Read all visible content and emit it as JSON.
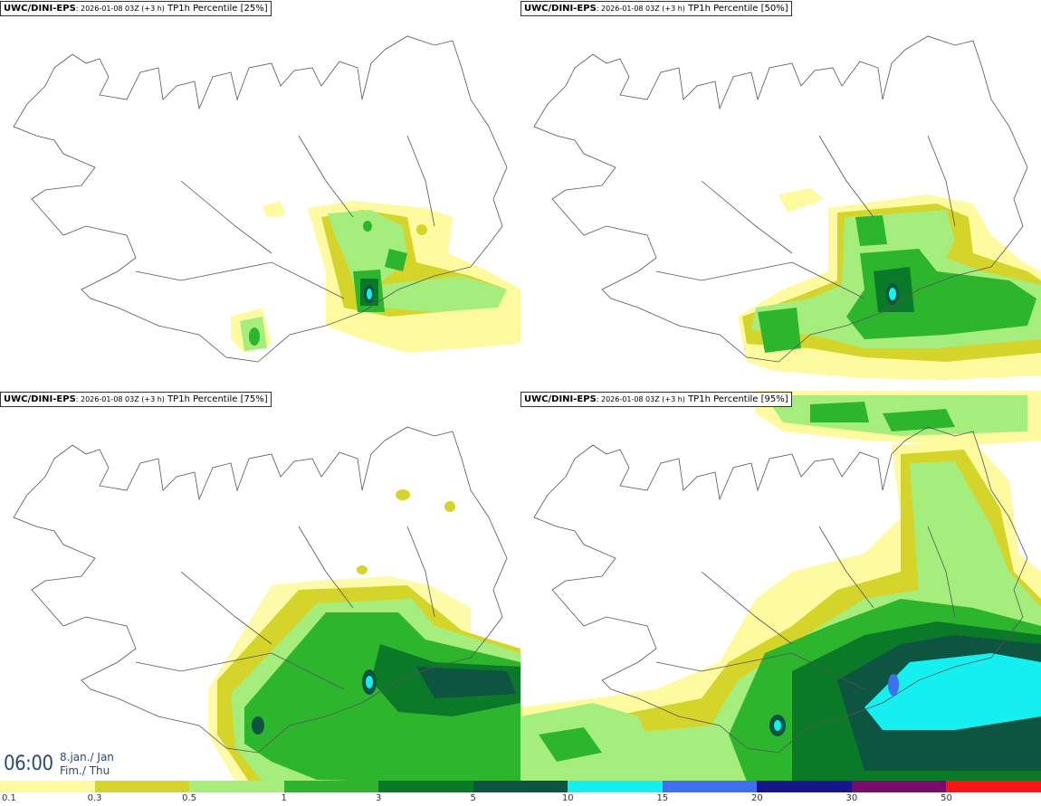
{
  "panels": [
    {
      "model": "UWC/DINI-EPS",
      "run": ": 2026-01-08 03Z (+3 h)",
      "product": " TP1h Percentile [25%]"
    },
    {
      "model": "UWC/DINI-EPS",
      "run": ": 2026-01-08 03Z (+3 h)",
      "product": " TP1h Percentile [50%]"
    },
    {
      "model": "UWC/DINI-EPS",
      "run": ": 2026-01-08 03Z (+3 h)",
      "product": " TP1h Percentile [75%]"
    },
    {
      "model": "UWC/DINI-EPS",
      "run": ": 2026-01-08 03Z (+3 h)",
      "product": " TP1h Percentile [95%]"
    }
  ],
  "valid_time": {
    "time": "06:00",
    "date_line1": "8.jan./ Jan",
    "date_line2": "Fim./ Thu"
  },
  "legend": {
    "ticks": [
      "0.1",
      "0.3",
      "0.5",
      "1",
      "3",
      "5",
      "10",
      "15",
      "20",
      "30",
      "50"
    ],
    "colors": [
      "#fdfaa0",
      "#d4d42a",
      "#a5ee7e",
      "#2db52d",
      "#0b7a28",
      "#0d5540",
      "#14f0f0",
      "#3d6ff0",
      "#15168c",
      "#7a0a6e",
      "#ff2aa0",
      "#fe1414"
    ]
  },
  "map_colors": {
    "coast": "#555555",
    "light_yellow": "#fdfaa0",
    "yellow": "#d4d42a",
    "light_green": "#a5ee7e",
    "green": "#2db52d",
    "dark_green": "#0b7a28",
    "darkest": "#0d5540",
    "cyan": "#14f0f0",
    "blue": "#3d6ff0"
  }
}
